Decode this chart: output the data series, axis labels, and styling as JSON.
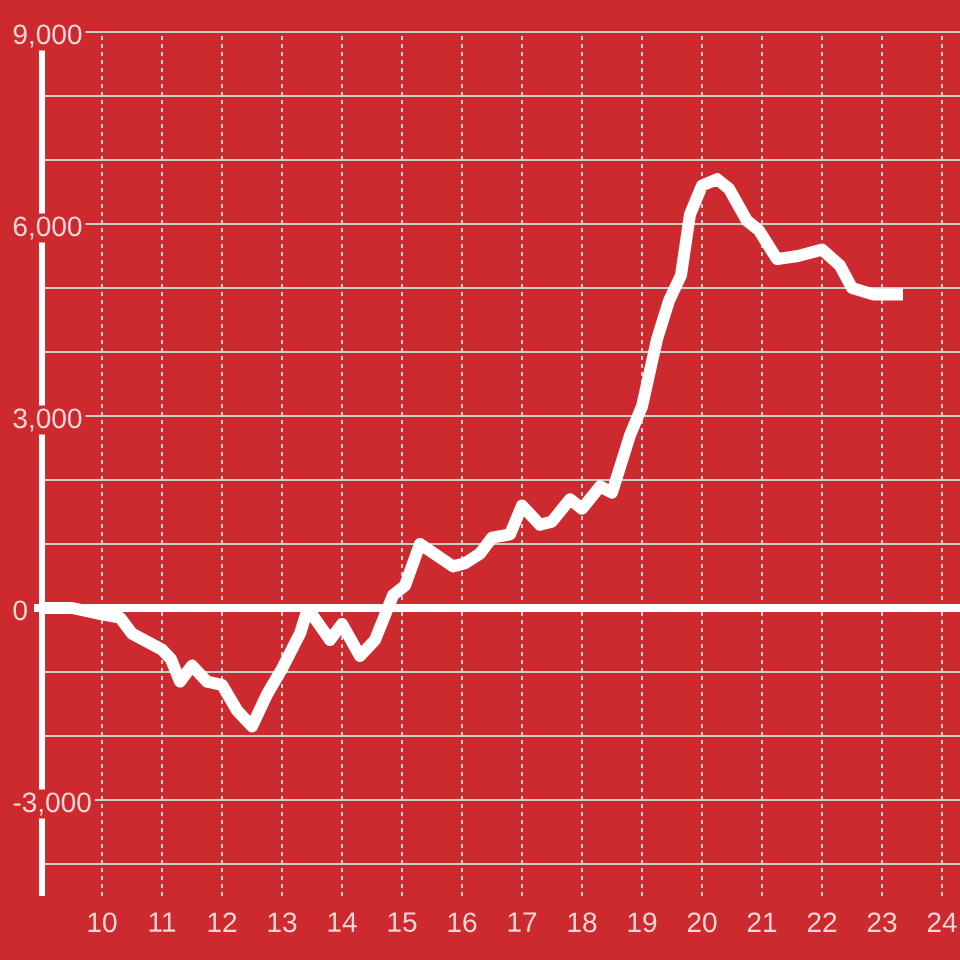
{
  "chart_data": {
    "type": "line",
    "x": [
      9.0,
      9.5,
      10.0,
      10.3,
      10.5,
      11.0,
      11.15,
      11.3,
      11.5,
      11.75,
      12.0,
      12.25,
      12.5,
      12.75,
      13.0,
      13.3,
      13.4,
      13.5,
      13.8,
      14.0,
      14.3,
      14.55,
      14.85,
      15.05,
      15.3,
      15.85,
      16.05,
      16.3,
      16.5,
      16.8,
      17.0,
      17.3,
      17.5,
      17.8,
      18.0,
      18.3,
      18.5,
      18.8,
      19.0,
      19.25,
      19.45,
      19.65,
      19.8,
      20.0,
      20.25,
      20.45,
      20.75,
      20.95,
      21.25,
      21.6,
      22.0,
      22.3,
      22.5,
      22.85,
      23.35
    ],
    "values": [
      0,
      0,
      -100,
      -150,
      -400,
      -650,
      -800,
      -1150,
      -900,
      -1150,
      -1200,
      -1600,
      -1850,
      -1350,
      -950,
      -400,
      -100,
      -100,
      -500,
      -250,
      -750,
      -500,
      200,
      350,
      1000,
      650,
      700,
      850,
      1100,
      1150,
      1600,
      1300,
      1350,
      1700,
      1550,
      1900,
      1800,
      2700,
      3150,
      4200,
      4800,
      5200,
      6150,
      6600,
      6700,
      6550,
      6050,
      5900,
      5450,
      5500,
      5600,
      5350,
      5000,
      4900,
      4900
    ],
    "color": "#ffffff",
    "xlim": [
      9,
      24.3
    ],
    "xticks": [
      10,
      11,
      12,
      13,
      14,
      15,
      16,
      17,
      18,
      19,
      20,
      21,
      22,
      23,
      24
    ],
    "ylim": [
      -4500,
      9000
    ],
    "yticks": [
      {
        "value": -4000,
        "label": null
      },
      {
        "value": -3000,
        "label": "-3,000"
      },
      {
        "value": -2000,
        "label": null
      },
      {
        "value": -1000,
        "label": null
      },
      0,
      {
        "value": 1000,
        "label": null
      },
      {
        "value": 2000,
        "label": null
      },
      {
        "value": 3000,
        "label": "3,000"
      },
      {
        "value": 4000,
        "label": null
      },
      {
        "value": 5000,
        "label": null
      },
      {
        "value": 6000,
        "label": "6,000"
      },
      {
        "value": 7000,
        "label": null
      },
      {
        "value": 8000,
        "label": null
      },
      {
        "value": 9000,
        "label": "9,000"
      }
    ],
    "grid": true,
    "ref_lines": [
      {
        "axis": "y",
        "value": 0,
        "color": "#ffffff"
      }
    ],
    "marker": "none",
    "line_style": "solid"
  }
}
